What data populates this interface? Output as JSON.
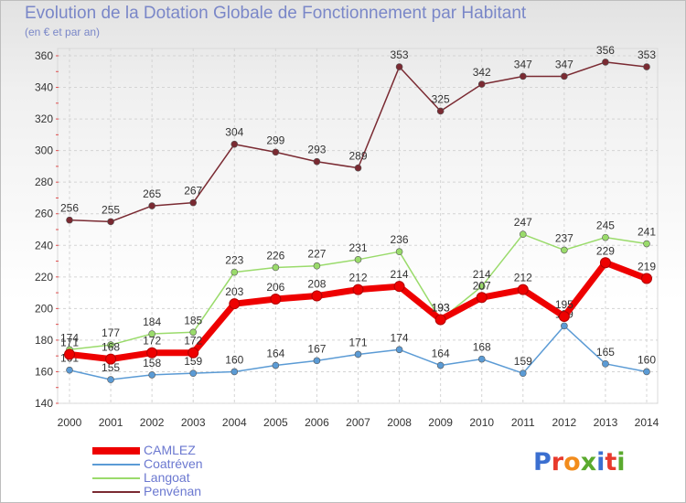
{
  "header": {
    "title": "Evolution de la Dotation Globale de Fonctionnement par Habitant",
    "subtitle": "(en € et par an)"
  },
  "logo": {
    "text": "Proxiti",
    "colors": [
      "#3b6fd0",
      "#e83a2c",
      "#f28c1c",
      "#5aaa2e",
      "#3b6fd0",
      "#e83a2c",
      "#5aaa2e"
    ]
  },
  "chart_data": {
    "type": "line",
    "title": "Evolution de la Dotation Globale de Fonctionnement par Habitant",
    "subtitle": "(en € et par an)",
    "categories": [
      "2000",
      "2001",
      "2002",
      "2003",
      "2004",
      "2005",
      "2006",
      "2007",
      "2008",
      "2009",
      "2010",
      "2011",
      "2012",
      "2013",
      "2014"
    ],
    "ylim": [
      140,
      360
    ],
    "yticks": [
      140,
      160,
      180,
      200,
      220,
      240,
      260,
      280,
      300,
      320,
      340,
      360
    ],
    "grid": true,
    "legend_position": "bottom-left",
    "series": [
      {
        "name": "CAMLEZ",
        "color": "#ee0000",
        "emphasis": true,
        "values": [
          171,
          168,
          172,
          172,
          203,
          206,
          208,
          212,
          214,
          193,
          207,
          212,
          195,
          229,
          219
        ]
      },
      {
        "name": "Coatréven",
        "color": "#5b9bd5",
        "values": [
          161,
          155,
          158,
          159,
          160,
          164,
          167,
          171,
          174,
          164,
          168,
          159,
          189,
          165,
          160
        ]
      },
      {
        "name": "Langoat",
        "color": "#9adb6b",
        "values": [
          174,
          177,
          184,
          185,
          223,
          226,
          227,
          231,
          236,
          193,
          214,
          247,
          237,
          245,
          241
        ]
      },
      {
        "name": "Penvénan",
        "color": "#7a2a32",
        "values": [
          256,
          255,
          265,
          267,
          304,
          299,
          293,
          289,
          353,
          325,
          342,
          347,
          347,
          356,
          353
        ]
      }
    ]
  }
}
